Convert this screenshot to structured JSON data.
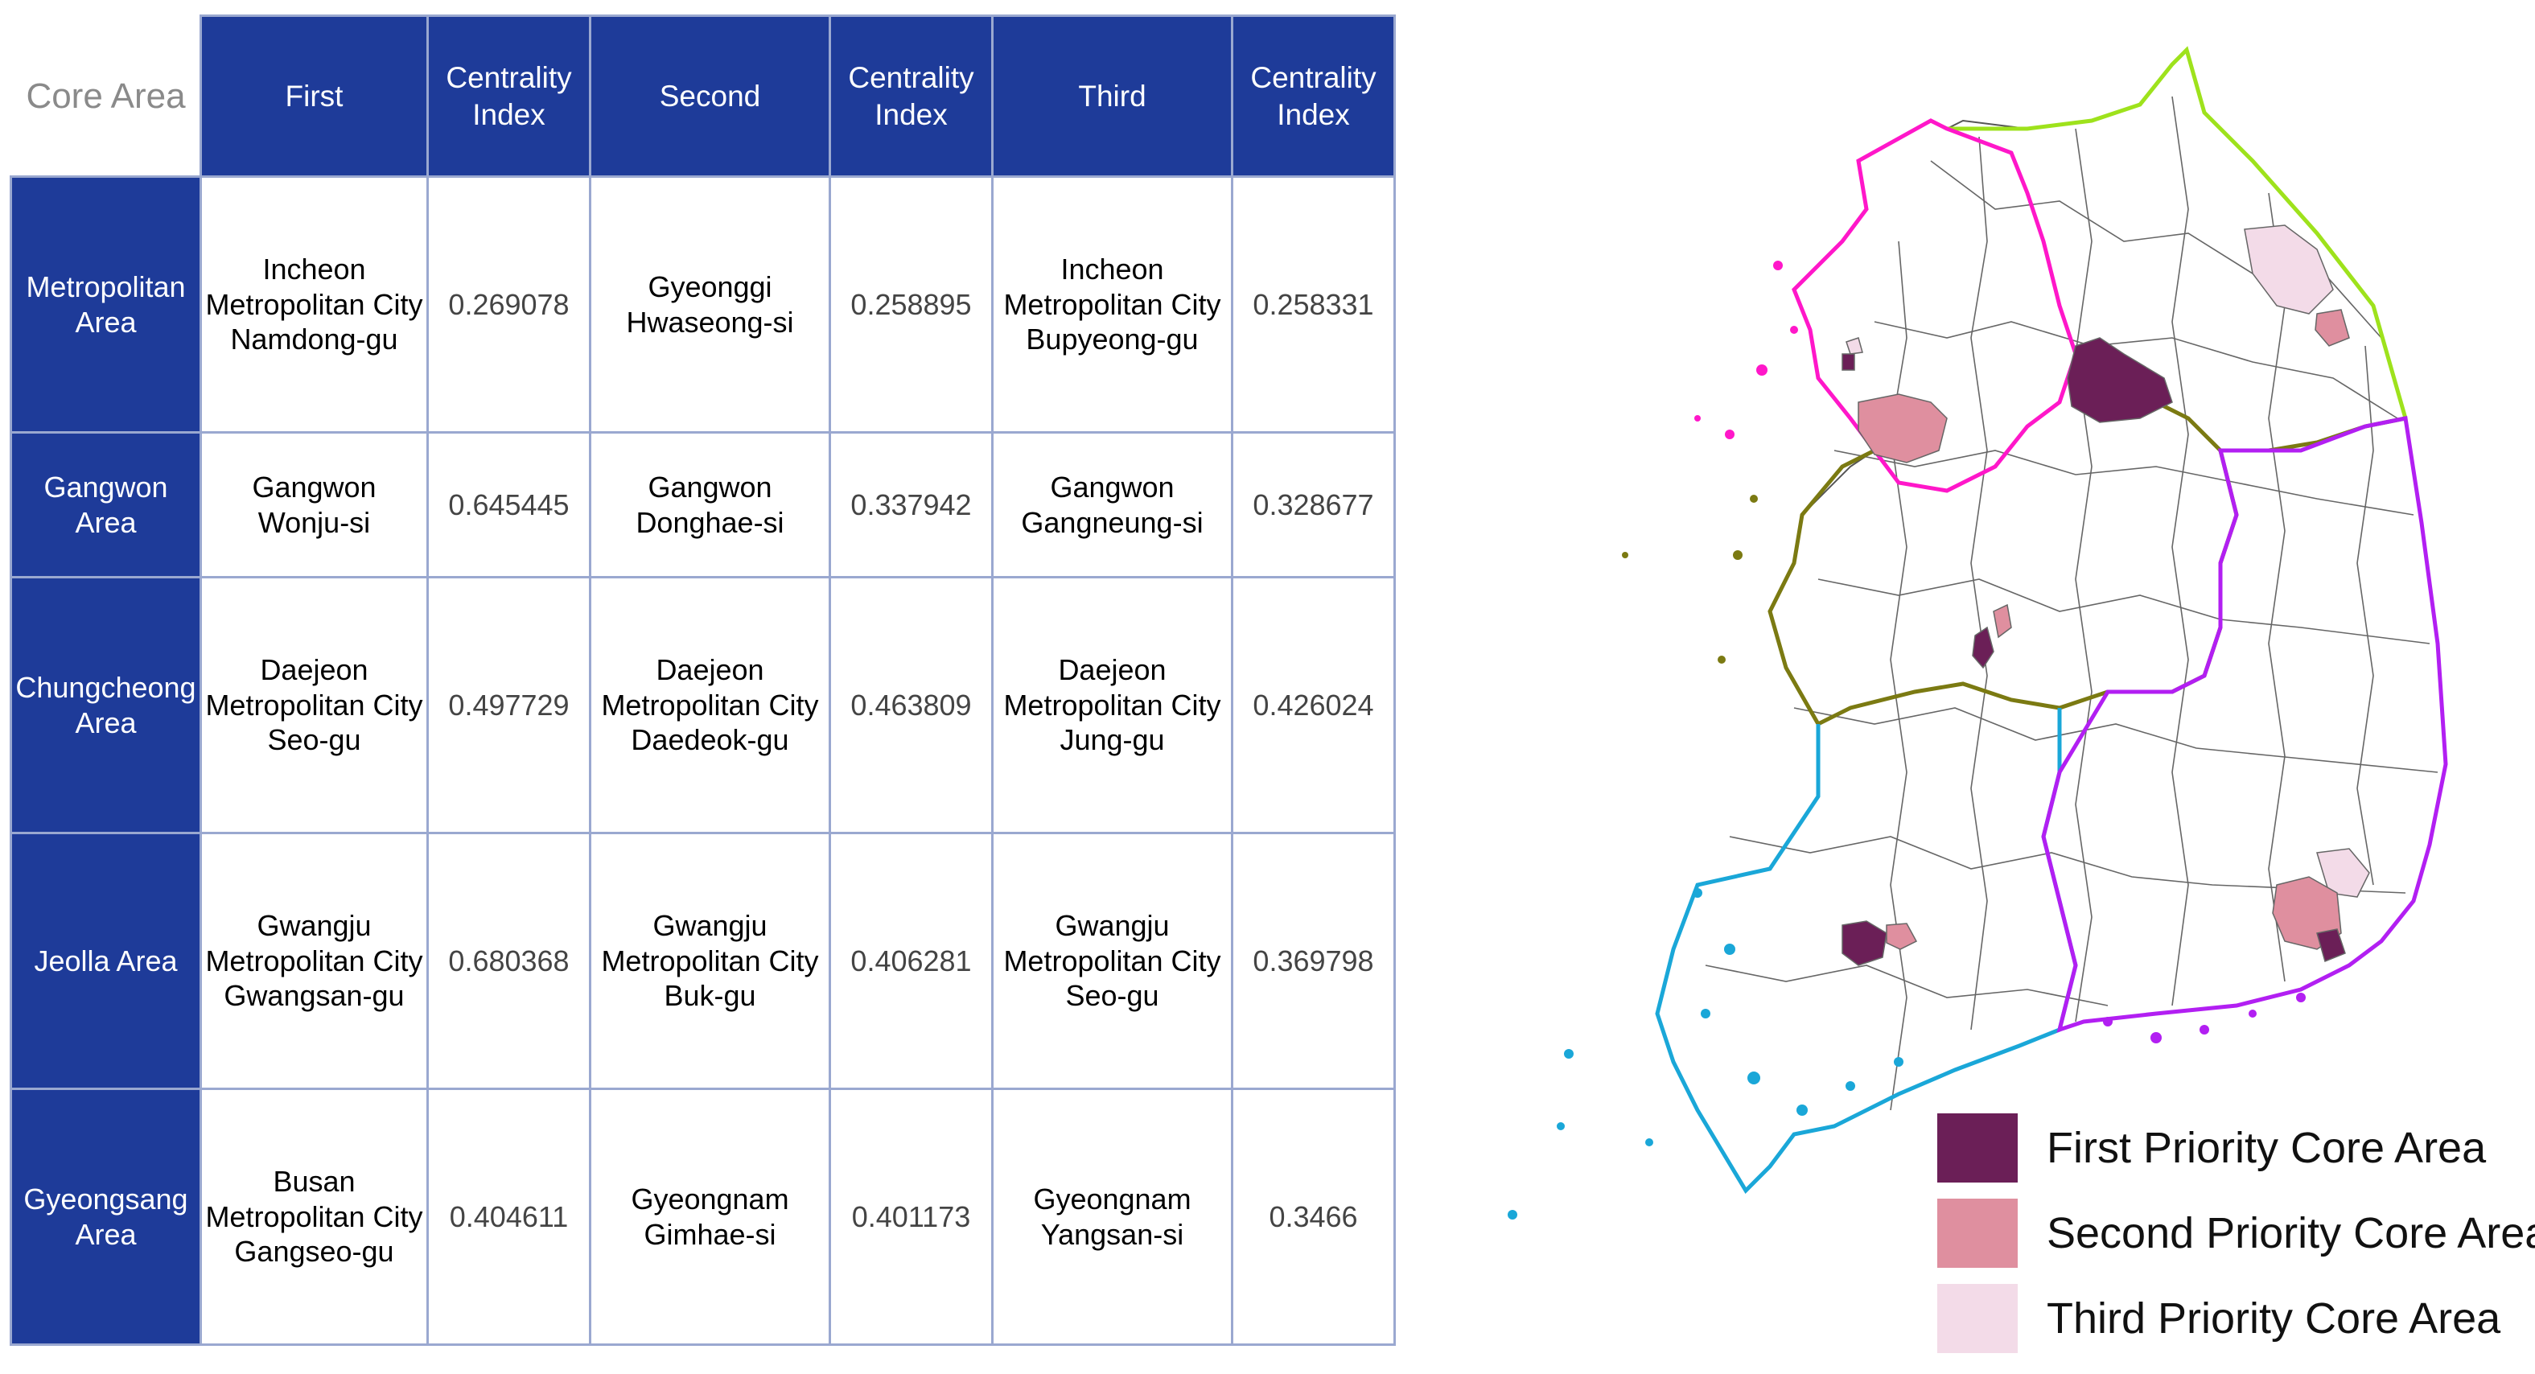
{
  "table": {
    "corner": "Core Area",
    "headers": [
      "First",
      "Centrality\nIndex",
      "Second",
      "Centrality\nIndex",
      "Third",
      "Centrality\nIndex"
    ],
    "rows": [
      {
        "area": "Metropolitan\nArea",
        "first": "Incheon\nMetropolitan City\nNamdong-gu",
        "first_index": "0.269078",
        "second": "Gyeonggi\nHwaseong-si",
        "second_index": "0.258895",
        "third": "Incheon\nMetropolitan City\nBupyeong-gu",
        "third_index": "0.258331"
      },
      {
        "area": "Gangwon\nArea",
        "first": "Gangwon\nWonju-si",
        "first_index": "0.645445",
        "second": "Gangwon\nDonghae-si",
        "second_index": "0.337942",
        "third": "Gangwon\nGangneung-si",
        "third_index": "0.328677"
      },
      {
        "area": "Chungcheong\nArea",
        "first": "Daejeon\nMetropolitan City\nSeo-gu",
        "first_index": "0.497729",
        "second": "Daejeon\nMetropolitan City\nDaedeok-gu",
        "second_index": "0.463809",
        "third": "Daejeon\nMetropolitan City\nJung-gu",
        "third_index": "0.426024"
      },
      {
        "area": "Jeolla Area",
        "first": "Gwangju\nMetropolitan City\nGwangsan-gu",
        "first_index": "0.680368",
        "second": "Gwangju\nMetropolitan City\nBuk-gu",
        "second_index": "0.406281",
        "third": "Gwangju\nMetropolitan City\nSeo-gu",
        "third_index": "0.369798"
      },
      {
        "area": "Gyeongsang\nArea",
        "first": "Busan\nMetropolitan City\nGangseo-gu",
        "first_index": "0.404611",
        "second": "Gyeongnam\nGimhae-si",
        "second_index": "0.401173",
        "third": "Gyeongnam\nYangsan-si",
        "third_index": "0.3466"
      }
    ]
  },
  "legend": {
    "items": [
      {
        "label": "First Priority Core Area",
        "color": "#6b1f57"
      },
      {
        "label": "Second Priority Core Area",
        "color": "#df8f9f"
      },
      {
        "label": "Third Priority Core Area",
        "color": "#f3dbe8"
      }
    ]
  },
  "colors": {
    "header_bg": "#1e3b99",
    "metropolitan_border": "#ff17c9",
    "gangwon_border": "#9ee21c",
    "chungcheong_border": "#7b7a12",
    "jeolla_border": "#1aa7d8",
    "gyeongsang_border": "#b21ff2",
    "first_priority": "#6b1f57",
    "second_priority": "#df8f9f",
    "third_priority": "#f3dbe8"
  }
}
